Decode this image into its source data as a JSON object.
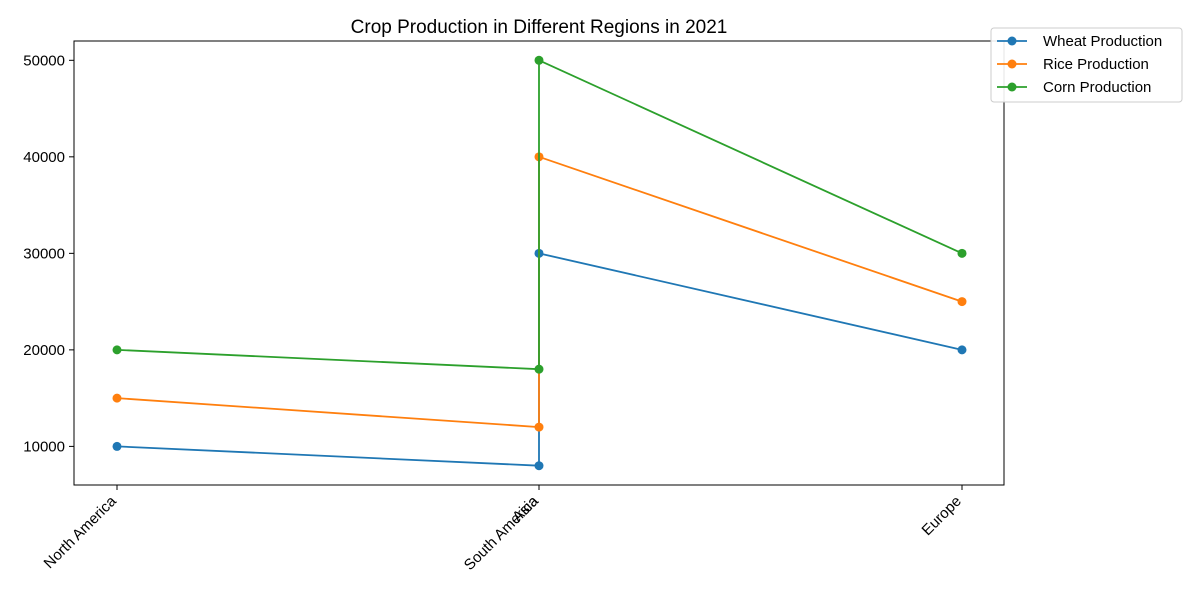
{
  "chart_data": {
    "type": "line",
    "title": "Crop Production in Different Regions in 2021",
    "xlabel": "",
    "ylabel": "",
    "categories": [
      "North America",
      "South America",
      "Asia",
      "Europe"
    ],
    "y_ticks": [
      10000,
      20000,
      30000,
      40000,
      50000
    ],
    "ylim": [
      6000,
      52000
    ],
    "grid": false,
    "legend_position": "top-right",
    "series": [
      {
        "name": "Wheat Production",
        "color": "#1f77b4",
        "points": [
          [
            "North America",
            10000
          ],
          [
            "South America",
            8000
          ],
          [
            "Asia",
            30000
          ],
          [
            "Europe",
            20000
          ]
        ]
      },
      {
        "name": "Rice Production",
        "color": "#ff7f0e",
        "points": [
          [
            "North America",
            15000
          ],
          [
            "South America",
            12000
          ],
          [
            "Asia",
            40000
          ],
          [
            "Europe",
            25000
          ]
        ]
      },
      {
        "name": "Corn Production",
        "color": "#2ca02c",
        "points": [
          [
            "North America",
            20000
          ],
          [
            "South America",
            18000
          ],
          [
            "Asia",
            50000
          ],
          [
            "Europe",
            30000
          ]
        ]
      }
    ]
  }
}
